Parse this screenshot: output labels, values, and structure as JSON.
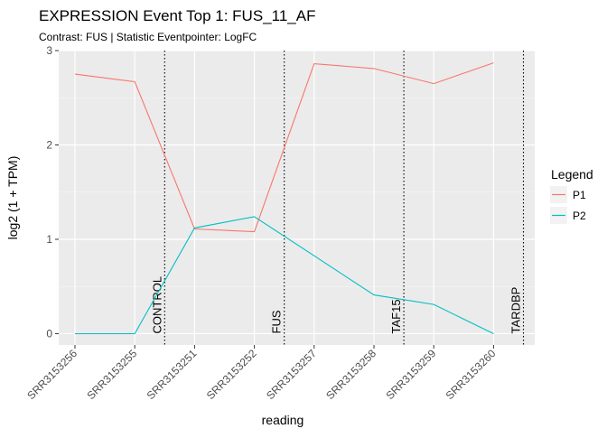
{
  "chart_data": {
    "type": "line",
    "title": "EXPRESSION Event Top 1: FUS_11_AF",
    "subtitle": "Contrast: FUS | Statistic Eventpointer: LogFC",
    "xlabel": "reading",
    "ylabel": "log2 (1 + TPM)",
    "ylim": [
      -0.12,
      3.0
    ],
    "yticks": [
      0,
      1,
      2,
      3
    ],
    "grid": true,
    "legend": {
      "title": "Legend",
      "position": "right"
    },
    "categories": [
      "SRR3153256",
      "SRR3153255",
      "SRR3153251",
      "SRR3153252",
      "SRR3153257",
      "SRR3153258",
      "SRR3153259",
      "SRR3153260"
    ],
    "series": [
      {
        "name": "P1",
        "color": "#F8766D",
        "values": [
          2.75,
          2.67,
          1.11,
          1.08,
          2.86,
          2.81,
          2.65,
          2.87
        ]
      },
      {
        "name": "P2",
        "color": "#00BFC4",
        "values": [
          0.0,
          0.0,
          1.12,
          1.24,
          null,
          0.41,
          0.31,
          0.0
        ]
      }
    ],
    "group_separators": [
      {
        "label": "CONTROL",
        "after_index": 1.5
      },
      {
        "label": "FUS",
        "after_index": 3.5
      },
      {
        "label": "TAF15",
        "after_index": 5.5
      },
      {
        "label": "TARDBP",
        "after_index": 7.5
      }
    ]
  }
}
